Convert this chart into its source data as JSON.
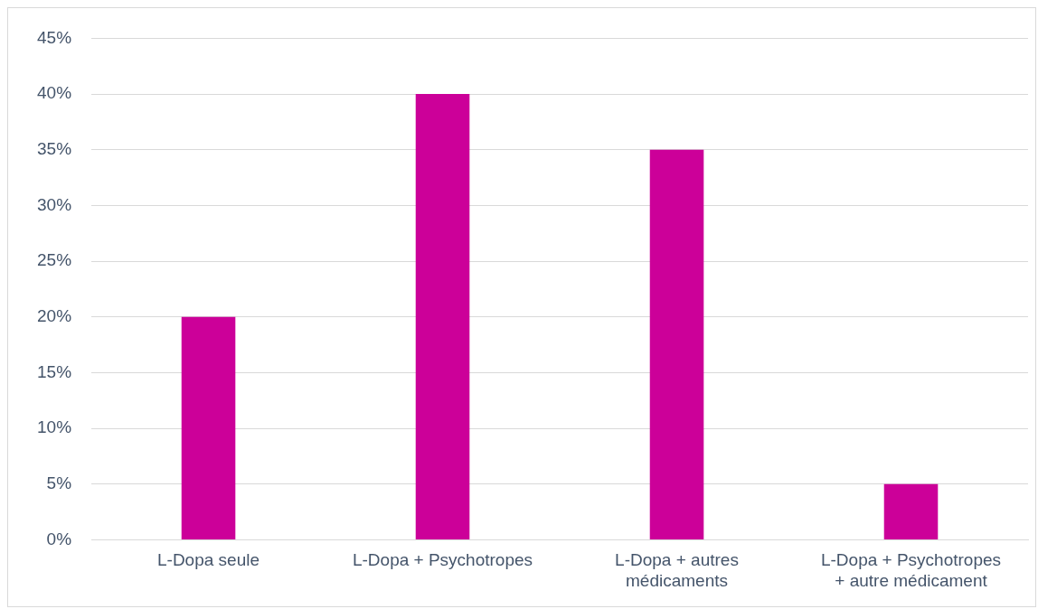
{
  "chart_data": {
    "type": "bar",
    "categories": [
      "L-Dopa seule",
      "L-Dopa + Psychotropes",
      "L-Dopa + autres médicaments",
      "L-Dopa + Psychotropes + autre médicament"
    ],
    "values": [
      20,
      40,
      35,
      5
    ],
    "color": "#cc0099",
    "ylim": [
      0,
      45
    ],
    "yticks": [
      {
        "value": 0,
        "label": "0%"
      },
      {
        "value": 5,
        "label": "5%"
      },
      {
        "value": 10,
        "label": "10%"
      },
      {
        "value": 15,
        "label": "15%"
      },
      {
        "value": 20,
        "label": "20%"
      },
      {
        "value": 25,
        "label": "25%"
      },
      {
        "value": 30,
        "label": "30%"
      },
      {
        "value": 35,
        "label": "35%"
      },
      {
        "value": 40,
        "label": "40%"
      },
      {
        "value": 45,
        "label": "45%"
      }
    ],
    "grid": "y",
    "legend": false
  }
}
